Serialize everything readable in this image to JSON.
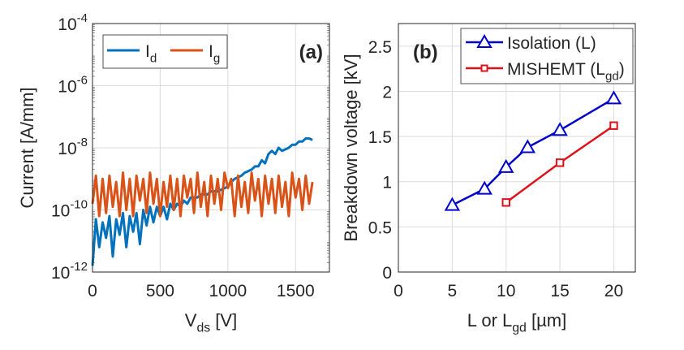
{
  "chart_data": [
    {
      "type": "line",
      "panel_label": "(a)",
      "xlabel": "V",
      "xlabel_sub": "ds",
      "xlabel_unit": " [V]",
      "ylabel": "Current [A/mm]",
      "xlim": [
        0,
        1750
      ],
      "ylim_log10": [
        -12,
        -4
      ],
      "yscale": "log",
      "xticks": [
        0,
        500,
        1000,
        1500
      ],
      "yticks_exp": [
        -12,
        -10,
        -8,
        -6,
        -4
      ],
      "grid": true,
      "legend_placement": "top-left",
      "x_start": 0,
      "x_step": 25,
      "series": [
        {
          "name": "I",
          "sub": "d",
          "color": "#0072BD",
          "log10_values": [
            -11.8,
            -10.3,
            -11.2,
            -10.4,
            -10.9,
            -10.2,
            -11.5,
            -10.3,
            -10.8,
            -10.1,
            -11.2,
            -10.2,
            -10.7,
            -10.1,
            -11.1,
            -10.0,
            -10.5,
            -9.9,
            -10.4,
            -9.9,
            -10.2,
            -9.9,
            -10.3,
            -9.8,
            -10.0,
            -9.8,
            -9.9,
            -9.7,
            -9.8,
            -9.6,
            -9.6,
            -9.6,
            -9.5,
            -9.5,
            -9.5,
            -9.4,
            -9.4,
            -9.4,
            -9.35,
            -9.3,
            -9.25,
            -9.1,
            -9.0,
            -8.95,
            -8.9,
            -8.8,
            -8.75,
            -8.7,
            -8.6,
            -8.6,
            -8.4,
            -8.5,
            -8.2,
            -8.1,
            -8.2,
            -8.0,
            -8.1,
            -8.05,
            -8.0,
            -7.9,
            -7.9,
            -7.8,
            -7.8,
            -7.7,
            -7.7,
            -7.75
          ]
        },
        {
          "name": "I",
          "sub": "g",
          "color": "#D95319",
          "log10_values": [
            -9.8,
            -8.9,
            -10.2,
            -9.0,
            -10.1,
            -8.9,
            -9.9,
            -9.1,
            -10.2,
            -8.8,
            -10.0,
            -9.0,
            -10.2,
            -8.9,
            -9.7,
            -9.0,
            -10.1,
            -8.8,
            -9.8,
            -9.0,
            -10.2,
            -9.1,
            -9.9,
            -8.9,
            -10.0,
            -9.0,
            -10.2,
            -8.9,
            -9.6,
            -9.0,
            -10.1,
            -8.8,
            -9.9,
            -9.1,
            -10.2,
            -8.9,
            -9.8,
            -9.0,
            -10.0,
            -8.8,
            -9.3,
            -9.0,
            -10.2,
            -8.9,
            -9.9,
            -9.1,
            -10.1,
            -8.8,
            -9.7,
            -9.0,
            -10.2,
            -8.9,
            -9.8,
            -9.0,
            -10.1,
            -8.9,
            -9.9,
            -9.1,
            -10.2,
            -8.8,
            -9.6,
            -9.0,
            -10.0,
            -8.9,
            -9.8,
            -9.1
          ]
        }
      ]
    },
    {
      "type": "line",
      "panel_label": "(b)",
      "xlabel": "L or L",
      "xlabel_sub": "gd",
      "xlabel_unit": " [µm]",
      "ylabel": "Breakdown voltage [kV]",
      "xlim": [
        0,
        22
      ],
      "ylim": [
        0,
        2.75
      ],
      "xticks": [
        0,
        5,
        10,
        15,
        20
      ],
      "yticks": [
        0,
        0.5,
        1,
        1.5,
        2,
        2.5
      ],
      "ytick_labels": [
        "0",
        "0.5",
        "1",
        "1.5",
        "2",
        "2.5"
      ],
      "grid": true,
      "legend_placement": "top-right",
      "series": [
        {
          "name": "Isolation (L)",
          "sub": "",
          "suffix": "",
          "marker": "triangle",
          "color": "#0000CC",
          "x": [
            5,
            8,
            10,
            12,
            15,
            20
          ],
          "y": [
            0.74,
            0.92,
            1.16,
            1.38,
            1.57,
            1.92
          ]
        },
        {
          "name": "MISHEMT (L",
          "sub": "gd",
          "suffix": ")",
          "marker": "square",
          "color": "#E0101A",
          "x": [
            10,
            15,
            20
          ],
          "y": [
            0.77,
            1.21,
            1.62
          ]
        }
      ]
    }
  ]
}
